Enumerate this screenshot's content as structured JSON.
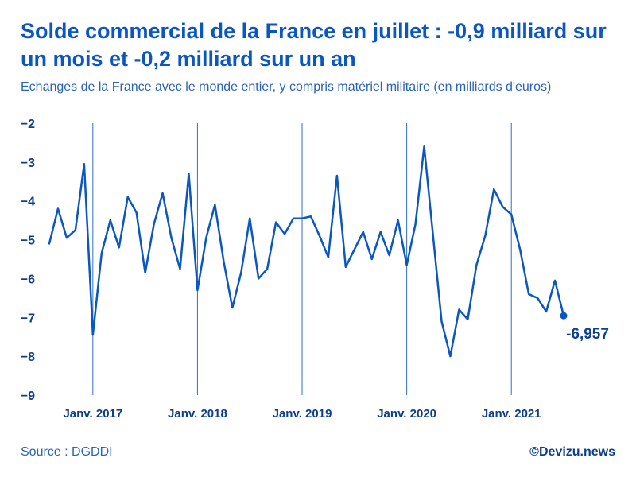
{
  "header": {
    "title": "Solde commercial de la France en juillet : -0,9 milliard sur un mois et -0,2 milliard sur un an",
    "subtitle": "Echanges de la France avec le monde entier, y compris matériel militaire (en milliards d'euros)"
  },
  "footer": {
    "source": "Source : DGDDI",
    "brand": "©Devizu.news"
  },
  "colors": {
    "line": "#0a56c2",
    "title": "#0a56c2",
    "ticks": "#0d3f8f",
    "gridlines": "#2f6fc9"
  },
  "chart_data": {
    "type": "line",
    "title": "Solde commercial de la France en juillet : -0,9 milliard sur un mois et -0,2 milliard sur un an",
    "xlabel": "",
    "ylabel": "",
    "ylim": [
      -9,
      -2
    ],
    "yticks": [
      -2,
      -3,
      -4,
      -5,
      -6,
      -7,
      -8,
      -9
    ],
    "ytick_labels": [
      "−2",
      "−3",
      "−4",
      "−5",
      "−6",
      "−7",
      "−8",
      "−9"
    ],
    "x_start": "2016-08",
    "x_end": "2021-07",
    "year_markers": [
      {
        "index": 5,
        "label": "Janv. 2017"
      },
      {
        "index": 17,
        "label": "Janv. 2018"
      },
      {
        "index": 29,
        "label": "Janv. 2019"
      },
      {
        "index": 41,
        "label": "Janv. 2020"
      },
      {
        "index": 53,
        "label": "Janv. 2021"
      }
    ],
    "series": [
      {
        "name": "Solde commercial",
        "values": [
          -5.1,
          -4.2,
          -4.95,
          -4.75,
          -3.05,
          -7.45,
          -5.35,
          -4.5,
          -5.2,
          -3.9,
          -4.3,
          -5.85,
          -4.6,
          -3.8,
          -4.95,
          -5.75,
          -3.3,
          -6.3,
          -4.95,
          -4.1,
          -5.55,
          -6.75,
          -5.85,
          -4.45,
          -6.0,
          -5.75,
          -4.55,
          -4.85,
          -4.45,
          -4.45,
          -4.4,
          -4.9,
          -5.45,
          -3.35,
          -5.7,
          -5.25,
          -4.8,
          -5.5,
          -4.8,
          -5.4,
          -4.5,
          -5.65,
          -4.6,
          -2.6,
          -4.85,
          -7.1,
          -8.0,
          -6.8,
          -7.05,
          -5.65,
          -4.9,
          -3.7,
          -4.15,
          -4.35,
          -5.25,
          -6.4,
          -6.5,
          -6.85,
          -6.05,
          -6.957
        ]
      }
    ],
    "last_point_label": "-6,957"
  }
}
